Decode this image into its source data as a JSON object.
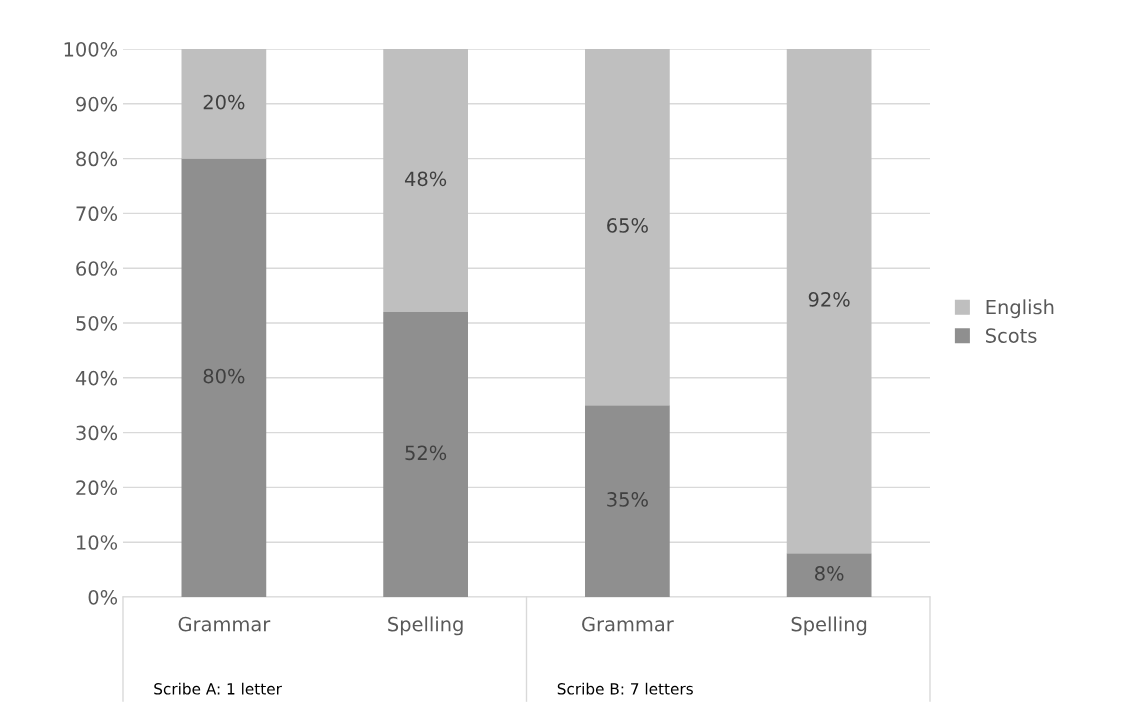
{
  "chart_data": {
    "type": "bar",
    "stacked": true,
    "categories": [
      "Grammar",
      "Spelling",
      "Grammar",
      "Spelling"
    ],
    "series": [
      {
        "name": "Scots",
        "color": "#8f8f8f",
        "values": [
          80,
          52,
          35,
          8
        ],
        "value_labels": [
          "80%",
          "52%",
          "35%",
          "8%"
        ]
      },
      {
        "name": "English",
        "color": "#bfbfbf",
        "values": [
          20,
          48,
          65,
          92
        ],
        "value_labels": [
          "20%",
          "48%",
          "65%",
          "92%"
        ]
      }
    ],
    "ylim": [
      0,
      100
    ],
    "yticks": [
      {
        "value": 0,
        "label": "0%"
      },
      {
        "value": 10,
        "label": "10%"
      },
      {
        "value": 20,
        "label": "20%"
      },
      {
        "value": 30,
        "label": "30%"
      },
      {
        "value": 40,
        "label": "40%"
      },
      {
        "value": 50,
        "label": "50%"
      },
      {
        "value": 60,
        "label": "60%"
      },
      {
        "value": 70,
        "label": "70%"
      },
      {
        "value": 80,
        "label": "80%"
      },
      {
        "value": 90,
        "label": "90%"
      },
      {
        "value": 100,
        "label": "100%"
      }
    ],
    "annotations": [
      "Scribe A: 1 letter",
      "Scribe B: 7 letters"
    ],
    "grid": "y",
    "legend": "right"
  }
}
